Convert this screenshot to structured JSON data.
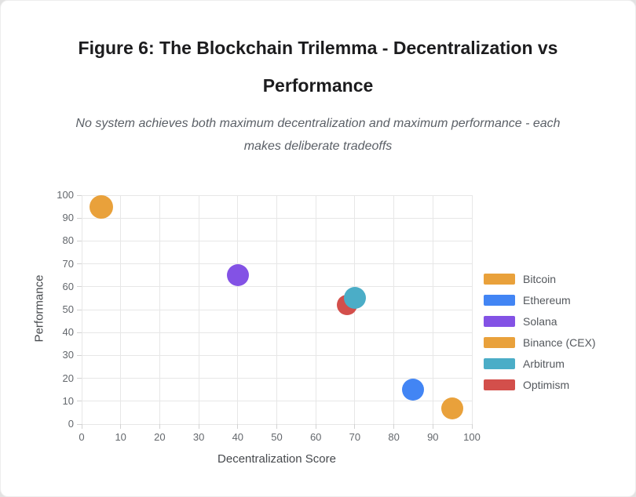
{
  "header": {
    "title_lines": [
      "Figure 6: The Blockchain Trilemma - Decentralization vs",
      "Performance"
    ],
    "subtitle_lines": [
      "No system achieves both maximum decentralization and maximum performance - each",
      "makes deliberate tradeoffs"
    ]
  },
  "chart_data": {
    "type": "scatter",
    "title": "Figure 6: The Blockchain Trilemma - Decentralization vs Performance",
    "subtitle": "No system achieves both maximum decentralization and maximum performance - each makes deliberate tradeoffs",
    "xlabel": "Decentralization Score",
    "ylabel": "Performance",
    "xlim": [
      0,
      100
    ],
    "ylim": [
      0,
      100
    ],
    "xticks": [
      0,
      10,
      20,
      30,
      40,
      50,
      60,
      70,
      80,
      90,
      100
    ],
    "yticks": [
      0,
      10,
      20,
      30,
      40,
      50,
      60,
      70,
      80,
      90,
      100
    ],
    "grid": true,
    "legend_position": "right",
    "series": [
      {
        "name": "Bitcoin",
        "color": "#E9A13B",
        "points": [
          {
            "x": 95,
            "y": 7,
            "r": 14
          }
        ]
      },
      {
        "name": "Ethereum",
        "color": "#4285F4",
        "points": [
          {
            "x": 85,
            "y": 15,
            "r": 14
          }
        ]
      },
      {
        "name": "Solana",
        "color": "#8352E5",
        "points": [
          {
            "x": 40,
            "y": 65,
            "r": 14
          }
        ]
      },
      {
        "name": "Binance (CEX)",
        "color": "#E9A13B",
        "points": [
          {
            "x": 5,
            "y": 95,
            "r": 15
          }
        ]
      },
      {
        "name": "Arbitrum",
        "color": "#4BADC7",
        "points": [
          {
            "x": 70,
            "y": 55,
            "r": 14
          }
        ]
      },
      {
        "name": "Optimism",
        "color": "#D34F4B",
        "points": [
          {
            "x": 68,
            "y": 52,
            "r": 13
          }
        ]
      }
    ]
  }
}
